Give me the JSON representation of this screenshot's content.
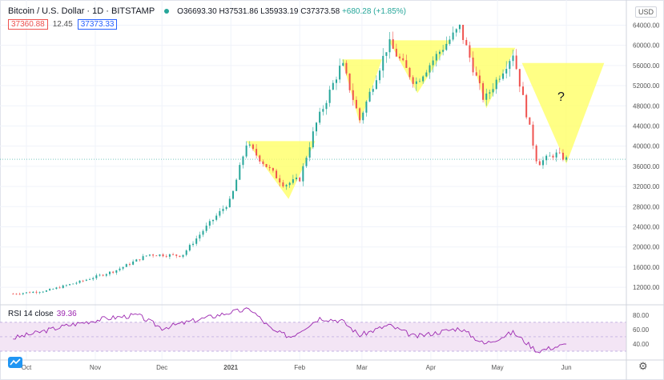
{
  "header": {
    "symbol": "Bitcoin / U.S. Dollar · 1D · BITSTAMP",
    "open": "O36693.30",
    "high": "H37531.86",
    "low": "L35933.19",
    "close": "C37373.58",
    "change": "+680.28 (+1.85%)",
    "bid": "37360.88",
    "spread": "12.45",
    "ask": "37373.33"
  },
  "currency_label": "USD",
  "rsi_label": "RSI 14 close",
  "rsi_value": "39.36",
  "question_mark": "?",
  "colors": {
    "up": "#26a69a",
    "down": "#ef5350",
    "rsi": "#9c27b0",
    "triangle": "#ffff66",
    "rsi_band": "#f3e5f5"
  },
  "chart_data": [
    {
      "type": "candlestick",
      "price_axis": {
        "ticks": [
          "64000.00",
          "60000.00",
          "56000.00",
          "52000.00",
          "48000.00",
          "44000.00",
          "40000.00",
          "36000.00",
          "32000.00",
          "28000.00",
          "24000.00",
          "20000.00",
          "16000.00",
          "12000.00"
        ],
        "ylim": [
          9000,
          65500
        ]
      },
      "time_axis": {
        "ticks": [
          "Oct",
          "Nov",
          "Dec",
          "2021",
          "Feb",
          "Mar",
          "Apr",
          "May",
          "Jun"
        ]
      },
      "price_path_approx": [
        {
          "x": "2020-09-25",
          "y": 10700
        },
        {
          "x": "2020-10-10",
          "y": 11300
        },
        {
          "x": "2020-10-25",
          "y": 13100
        },
        {
          "x": "2020-11-10",
          "y": 15300
        },
        {
          "x": "2020-11-25",
          "y": 18500
        },
        {
          "x": "2020-12-10",
          "y": 18300
        },
        {
          "x": "2020-12-20",
          "y": 23500
        },
        {
          "x": "2021-01-01",
          "y": 29300
        },
        {
          "x": "2021-01-08",
          "y": 40500
        },
        {
          "x": "2021-01-15",
          "y": 37000
        },
        {
          "x": "2021-01-25",
          "y": 32300
        },
        {
          "x": "2021-02-01",
          "y": 33500
        },
        {
          "x": "2021-02-08",
          "y": 44000
        },
        {
          "x": "2021-02-20",
          "y": 56500
        },
        {
          "x": "2021-02-28",
          "y": 45200
        },
        {
          "x": "2021-03-13",
          "y": 60500
        },
        {
          "x": "2021-03-25",
          "y": 52500
        },
        {
          "x": "2021-04-05",
          "y": 58800
        },
        {
          "x": "2021-04-14",
          "y": 63500
        },
        {
          "x": "2021-04-25",
          "y": 49000
        },
        {
          "x": "2021-05-08",
          "y": 58500
        },
        {
          "x": "2021-05-19",
          "y": 36500
        },
        {
          "x": "2021-05-27",
          "y": 38500
        },
        {
          "x": "2021-06-01",
          "y": 37400
        }
      ],
      "patterns": [
        {
          "shape": "triangle",
          "points": [
            [
              "2021-01-08",
              41000
            ],
            [
              "2021-01-27",
              29500
            ],
            [
              "2021-02-08",
              41000
            ]
          ]
        },
        {
          "shape": "triangle",
          "points": [
            [
              "2021-02-20",
              57200
            ],
            [
              "2021-02-28",
              44500
            ],
            [
              "2021-03-10",
              57200
            ]
          ]
        },
        {
          "shape": "triangle",
          "points": [
            [
              "2021-03-13",
              61000
            ],
            [
              "2021-03-26",
              50500
            ],
            [
              "2021-04-10",
              61000
            ]
          ]
        },
        {
          "shape": "triangle",
          "points": [
            [
              "2021-04-18",
              59500
            ],
            [
              "2021-04-26",
              47500
            ],
            [
              "2021-05-09",
              59500
            ]
          ]
        },
        {
          "shape": "triangle",
          "points": [
            [
              "2021-05-12",
              56500
            ],
            [
              "2021-06-01",
              36500
            ],
            [
              "2021-06-18",
              56500
            ]
          ]
        }
      ]
    },
    {
      "type": "line",
      "title": "RSI 14 close",
      "y_ticks": [
        "80.00",
        "60.00",
        "40.00"
      ],
      "band": [
        30,
        70
      ],
      "ylim": [
        20,
        92
      ],
      "series": [
        {
          "values_approx": [
            {
              "x": "2020-09-25",
              "y": 48
            },
            {
              "x": "2020-10-05",
              "y": 55
            },
            {
              "x": "2020-10-20",
              "y": 66
            },
            {
              "x": "2020-11-05",
              "y": 75
            },
            {
              "x": "2020-11-20",
              "y": 80
            },
            {
              "x": "2020-12-01",
              "y": 62
            },
            {
              "x": "2020-12-15",
              "y": 72
            },
            {
              "x": "2021-01-01",
              "y": 84
            },
            {
              "x": "2021-01-10",
              "y": 88
            },
            {
              "x": "2021-01-20",
              "y": 58
            },
            {
              "x": "2021-01-28",
              "y": 50
            },
            {
              "x": "2021-02-10",
              "y": 76
            },
            {
              "x": "2021-02-20",
              "y": 72
            },
            {
              "x": "2021-02-28",
              "y": 52
            },
            {
              "x": "2021-03-13",
              "y": 66
            },
            {
              "x": "2021-03-25",
              "y": 50
            },
            {
              "x": "2021-04-14",
              "y": 62
            },
            {
              "x": "2021-04-25",
              "y": 40
            },
            {
              "x": "2021-05-08",
              "y": 56
            },
            {
              "x": "2021-05-19",
              "y": 30
            },
            {
              "x": "2021-05-27",
              "y": 36
            },
            {
              "x": "2021-06-01",
              "y": 39
            }
          ]
        }
      ]
    }
  ]
}
